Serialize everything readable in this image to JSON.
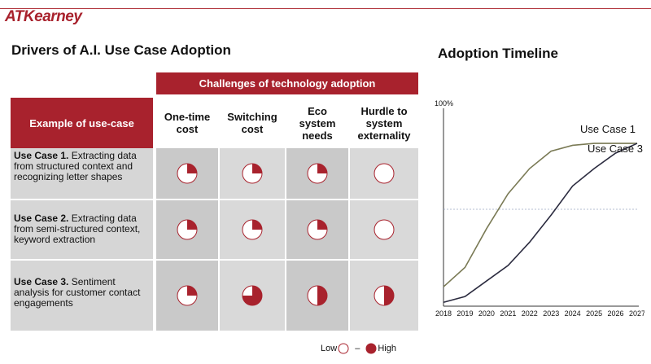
{
  "logo": {
    "text": "ATKearney",
    "color": "#a8222d"
  },
  "left_title": "Drivers of A.I. Use Case Adoption",
  "right_title": "Adoption Timeline",
  "table": {
    "challenges_header": "Challenges of technology adoption",
    "example_header": "Example of use-case",
    "columns": [
      {
        "label": "One-time cost"
      },
      {
        "label": "Switching cost"
      },
      {
        "label": "Eco system needs"
      },
      {
        "label": "Hurdle to system externality"
      }
    ],
    "rows": [
      {
        "title": "Use Case 1.",
        "desc": " Extracting data from structured context and recognizing letter shapes",
        "levels": [
          0.25,
          0.25,
          0.25,
          0
        ]
      },
      {
        "title": "Use Case 2.",
        "desc": " Extracting data from semi-structured context, keyword extraction",
        "levels": [
          0.25,
          0.25,
          0.25,
          0
        ]
      },
      {
        "title": "Use Case 3.",
        "desc": " Sentiment analysis for customer contact engagements",
        "levels": [
          0.25,
          0.75,
          0.5,
          0.5
        ]
      }
    ],
    "accent_color": "#a8222d"
  },
  "legend": {
    "low": "Low",
    "dash": "–",
    "high": "High"
  },
  "chart_data": {
    "type": "line",
    "title": "Adoption Timeline",
    "x": [
      2018,
      2019,
      2020,
      2021,
      2022,
      2023,
      2024,
      2025,
      2026,
      2027
    ],
    "x_tick_labels": [
      "2018",
      "2019",
      "2020",
      "2021",
      "2022",
      "2023",
      "2024",
      "2025",
      "2026",
      "2027"
    ],
    "y_label_top": "100%",
    "ylim": [
      0,
      100
    ],
    "reference_line": 50,
    "series": [
      {
        "name": "Use Case 1",
        "values": [
          10,
          20,
          40,
          58,
          71,
          80,
          83,
          84,
          84,
          84
        ],
        "color": "#7a7a55"
      },
      {
        "name": "Use Case 3",
        "values": [
          2,
          5,
          13,
          21,
          33,
          47,
          62,
          71,
          79,
          84
        ],
        "color": "#2b2b3f"
      }
    ],
    "legend_placement": "inline-end"
  }
}
